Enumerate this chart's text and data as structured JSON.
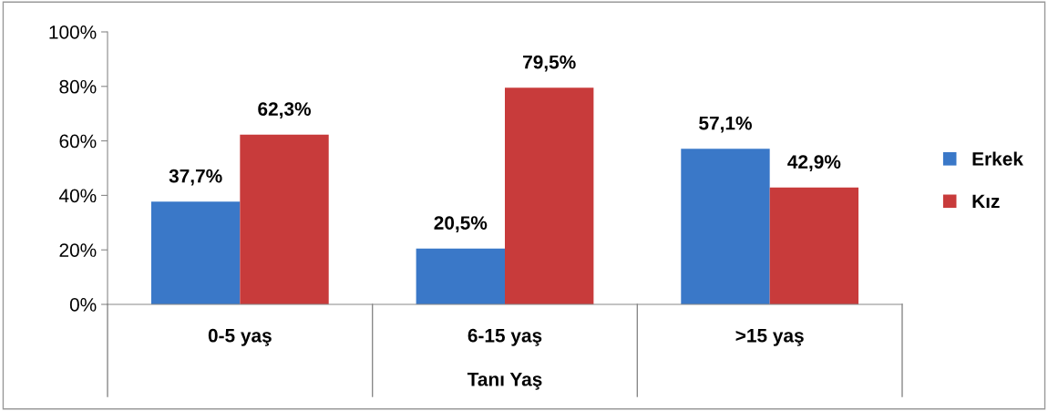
{
  "chart_data": {
    "type": "bar",
    "xlabel": "Tanı Yaş",
    "categories": [
      "0-5 yaş",
      "6-15 yaş",
      ">15 yaş"
    ],
    "series": [
      {
        "name": "Erkek",
        "color": "#3a78c8",
        "values": [
          37.7,
          20.5,
          57.1
        ],
        "value_labels": [
          "37,7%",
          "20,5%",
          "57,1%"
        ]
      },
      {
        "name": "Kız",
        "color": "#c83b3b",
        "values": [
          62.3,
          79.5,
          42.9
        ],
        "value_labels": [
          "62,3%",
          "79,5%",
          "42,9%"
        ]
      }
    ],
    "ylim": [
      0,
      100
    ],
    "yticks": [
      {
        "value": 0,
        "label": "0%"
      },
      {
        "value": 20,
        "label": "20%"
      },
      {
        "value": 40,
        "label": "40%"
      },
      {
        "value": 60,
        "label": "60%"
      },
      {
        "value": 80,
        "label": "80%"
      },
      {
        "value": 100,
        "label": "100%"
      }
    ],
    "grid": false,
    "legend": "right"
  }
}
